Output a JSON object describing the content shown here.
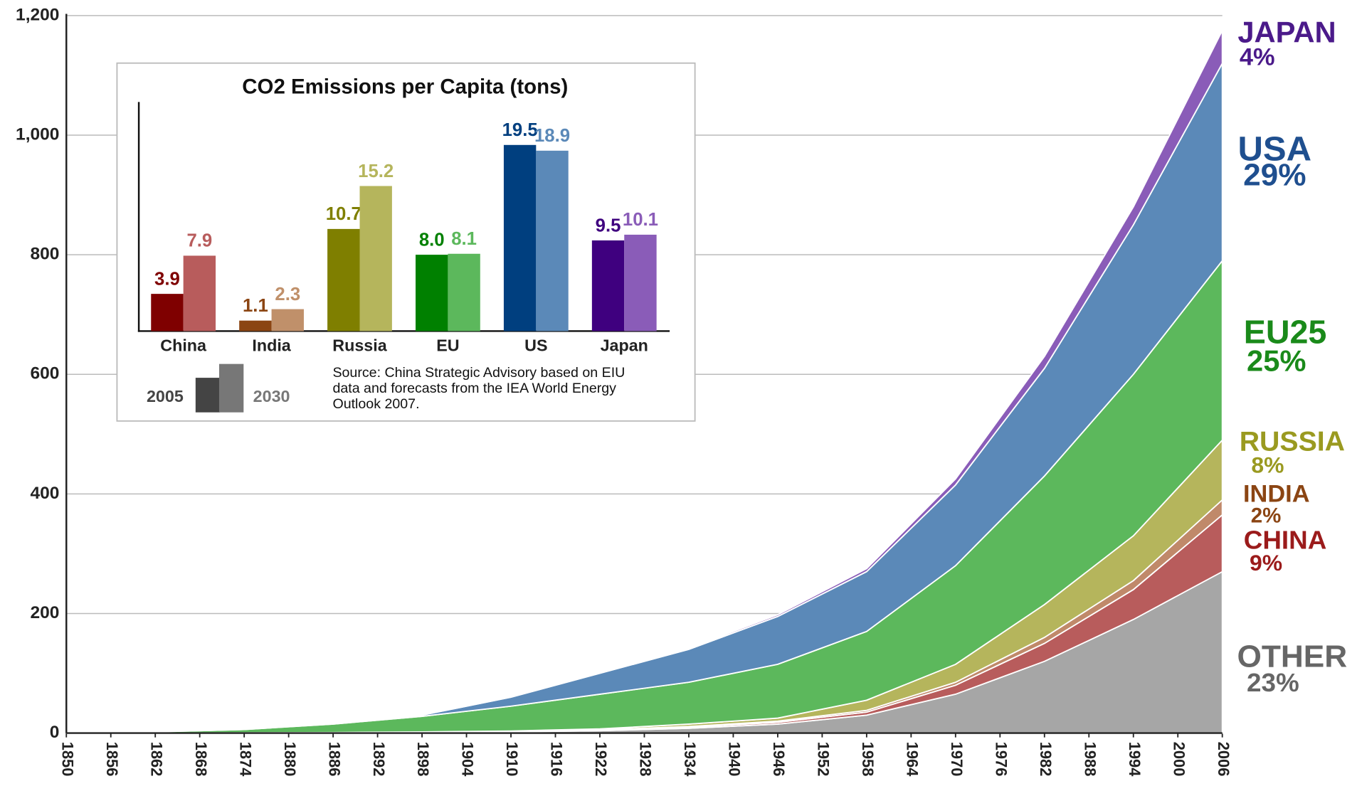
{
  "chart_data": [
    {
      "type": "area",
      "stacked": true,
      "x": [
        1850,
        1862,
        1874,
        1886,
        1898,
        1910,
        1922,
        1934,
        1946,
        1958,
        1970,
        1982,
        1994,
        2006
      ],
      "series": [
        {
          "name": "OTHER",
          "label": "23%",
          "color": "#a6a6a6",
          "label_color": "#666666",
          "values": [
            0,
            0,
            0.5,
            1,
            1.5,
            2,
            4,
            8,
            15,
            30,
            65,
            120,
            190,
            270
          ]
        },
        {
          "name": "CHINA",
          "label": "9%",
          "color": "#b85c5c",
          "label_color": "#9b1b1b",
          "values": [
            0,
            0,
            0,
            0,
            0,
            0.5,
            1,
            2,
            3,
            5,
            15,
            30,
            50,
            95
          ]
        },
        {
          "name": "INDIA",
          "label": "2%",
          "color": "#c0896a",
          "label_color": "#8b4513",
          "values": [
            0,
            0,
            0,
            0,
            0,
            0,
            0.5,
            1,
            2,
            3,
            5,
            10,
            15,
            25
          ]
        },
        {
          "name": "RUSSIA",
          "label": "8%",
          "color": "#b5b55c",
          "label_color": "#9a9a20",
          "values": [
            0,
            0,
            0,
            0,
            0.5,
            1,
            1.5,
            4,
            5,
            17,
            30,
            55,
            75,
            100
          ]
        },
        {
          "name": "EU25",
          "label": "25%",
          "color": "#5cb85c",
          "label_color": "#1a8a1a",
          "values": [
            0,
            2,
            5.5,
            14,
            26,
            41.5,
            58,
            70,
            90,
            115,
            165,
            215,
            270,
            300
          ]
        },
        {
          "name": "USA",
          "label": "29%",
          "color": "#5b89b8",
          "label_color": "#1f4f8f",
          "values": [
            0,
            0,
            1,
            2,
            2,
            15,
            35,
            55,
            80,
            100,
            135,
            180,
            250,
            330
          ]
        },
        {
          "name": "JAPAN",
          "label": "4%",
          "color": "#8a5cb8",
          "label_color": "#4b1a8a",
          "values": [
            0,
            0,
            0,
            0,
            0.5,
            0.5,
            1,
            2,
            3,
            5,
            10,
            20,
            30,
            55
          ]
        }
      ],
      "xlim": [
        1850,
        2006
      ],
      "xticks": [
        1850,
        1856,
        1862,
        1868,
        1874,
        1880,
        1886,
        1892,
        1898,
        1904,
        1910,
        1916,
        1922,
        1928,
        1934,
        1940,
        1946,
        1952,
        1958,
        1964,
        1970,
        1976,
        1982,
        1988,
        1994,
        2000,
        2006
      ],
      "ylim": [
        0,
        1200
      ],
      "yticks": [
        0,
        200,
        400,
        600,
        800,
        {
          "value": 1000,
          "label": "1,000"
        },
        {
          "value": 1200,
          "label": "1,200"
        }
      ],
      "grid": true
    },
    {
      "type": "bar",
      "title": "CO2 Emissions per Capita (tons)",
      "categories": [
        "China",
        "India",
        "Russia",
        "EU",
        "US",
        "Japan"
      ],
      "series": [
        {
          "name": "2005",
          "color": "#444444",
          "colors": [
            "#7f0000",
            "#8b4513",
            "#7f7f00",
            "#008000",
            "#003f7f",
            "#3f007f"
          ],
          "values": [
            3.9,
            1.1,
            10.7,
            8.0,
            19.5,
            9.5
          ],
          "value_labels": [
            "3.9",
            "1.1",
            "10.7",
            "8.0",
            "19.5",
            "9.5"
          ]
        },
        {
          "name": "2030",
          "color": "#777777",
          "colors": [
            "#b85c5c",
            "#c0906a",
            "#b5b55c",
            "#5cb85c",
            "#5b89b8",
            "#8a5cb8"
          ],
          "values": [
            7.9,
            2.3,
            15.2,
            8.1,
            18.9,
            10.1
          ],
          "value_labels": [
            "7.9",
            "2.3",
            "15.2",
            "8.1",
            "18.9",
            "10.1"
          ]
        }
      ],
      "ylim": [
        0,
        24
      ],
      "source": [
        "Source: China Strategic Advisory based on EIU",
        "data and forecasts from the IEA World Energy",
        "Outlook 2007."
      ]
    }
  ]
}
